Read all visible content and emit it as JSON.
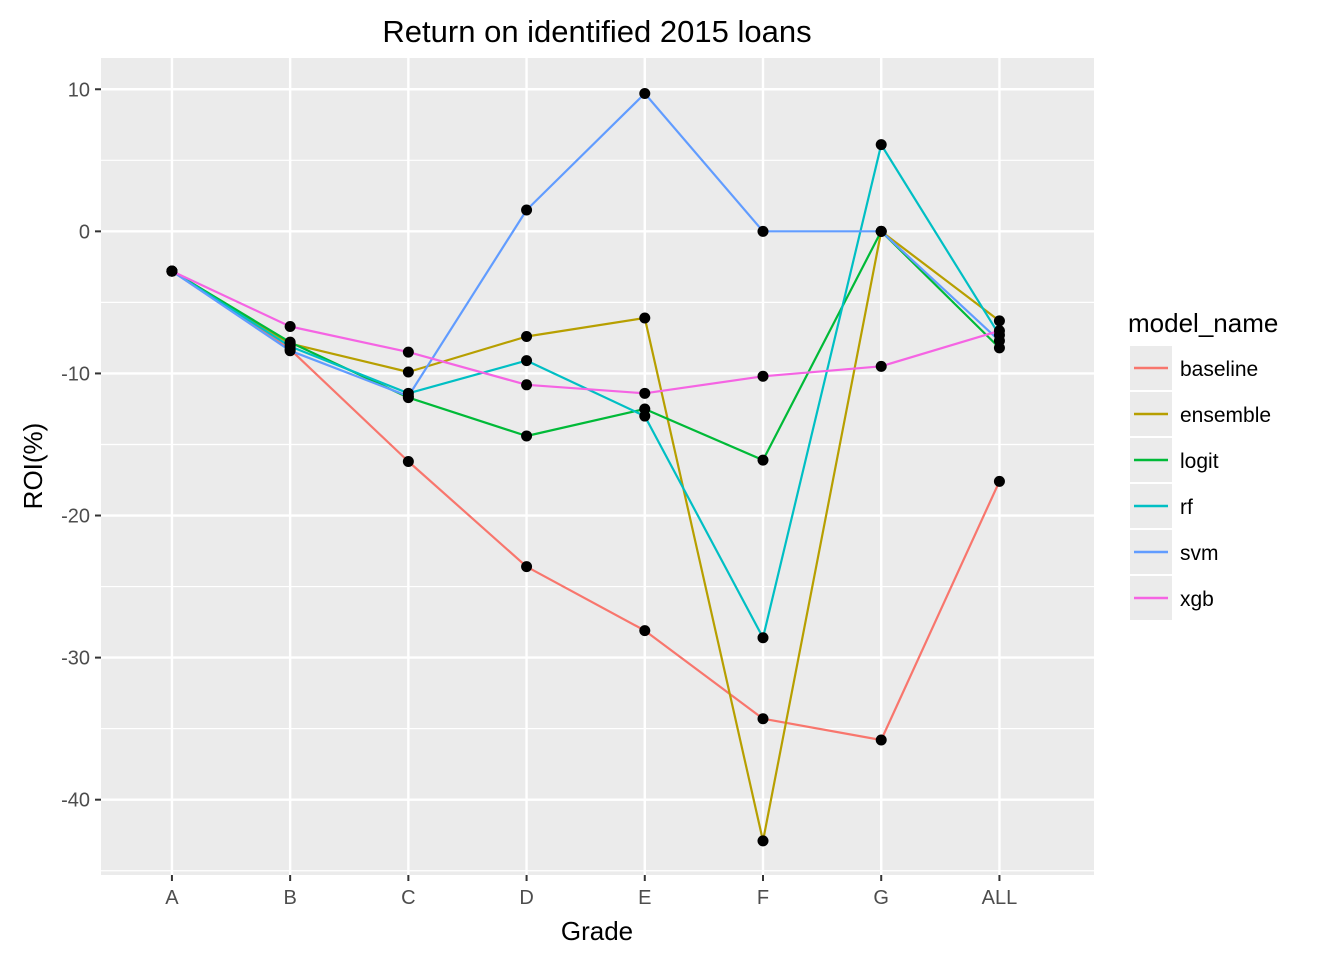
{
  "chart_data": {
    "type": "line",
    "title": "Return on identified 2015 loans",
    "xlabel": "Grade",
    "ylabel": "ROI(%)",
    "categories": [
      "A",
      "B",
      "C",
      "D",
      "E",
      "F",
      "G",
      "ALL"
    ],
    "ylim": [
      -45.3,
      12.2
    ],
    "yticks": [
      10,
      0,
      -10,
      -20,
      -30,
      -40
    ],
    "ytick_labels": [
      "10",
      "0",
      "-10",
      "-20",
      "-30",
      "-40"
    ],
    "grid": true,
    "legend": {
      "title": "model_name",
      "position": "right"
    },
    "series": [
      {
        "name": "baseline",
        "color": "#F8766D",
        "values": [
          -2.8,
          -8.3,
          -16.2,
          -23.6,
          -28.1,
          -34.3,
          -35.8,
          -17.6
        ]
      },
      {
        "name": "ensemble",
        "color": "#B79F00",
        "values": [
          -2.8,
          -7.9,
          -9.9,
          -7.4,
          -6.1,
          -42.9,
          0.0,
          -6.3
        ]
      },
      {
        "name": "logit",
        "color": "#00BA38",
        "values": [
          -2.8,
          -7.8,
          -11.7,
          -14.4,
          -12.5,
          -16.1,
          0.0,
          -8.2
        ]
      },
      {
        "name": "rf",
        "color": "#00BFC4",
        "values": [
          -2.8,
          -8.1,
          -11.4,
          -9.1,
          -13.0,
          -28.6,
          6.1,
          -7.3
        ]
      },
      {
        "name": "svm",
        "color": "#619CFF",
        "values": [
          -2.8,
          -8.4,
          -11.6,
          1.5,
          9.7,
          0.0,
          0.0,
          -7.7
        ]
      },
      {
        "name": "xgb",
        "color": "#F564E3",
        "values": [
          -2.8,
          -6.7,
          -8.5,
          -10.8,
          -11.4,
          -10.2,
          -9.5,
          -7.0
        ]
      }
    ],
    "point_color": "#000000",
    "panel_background": "#EBEBEB",
    "grid_color": "#FFFFFF"
  }
}
